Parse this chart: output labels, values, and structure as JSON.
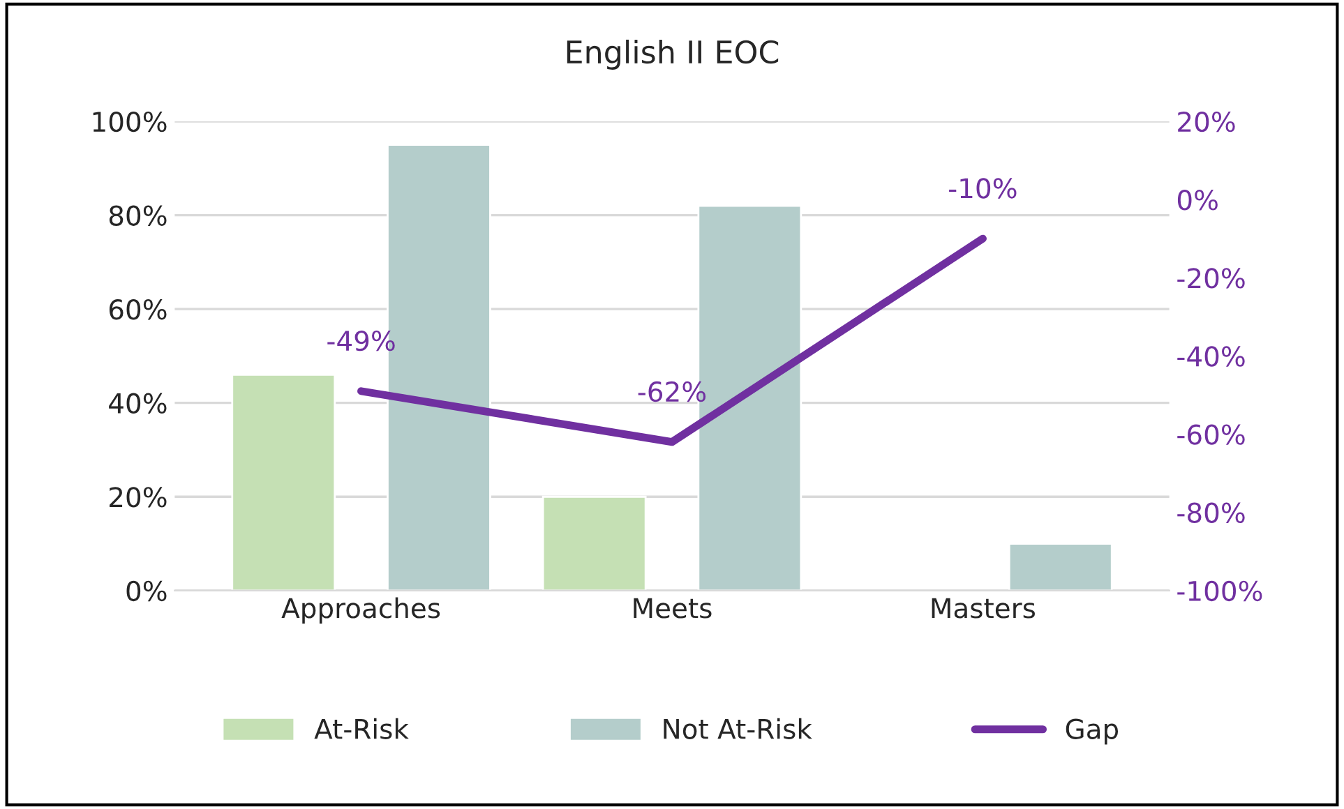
{
  "chart_data": {
    "type": "bar",
    "title": "English II EOC",
    "categories": [
      "Approaches",
      "Meets",
      "Masters"
    ],
    "series": [
      {
        "name": "At-Risk",
        "color": "#c5e0b4",
        "values": [
          46,
          20,
          null
        ]
      },
      {
        "name": "Not At-Risk",
        "color": "#b4cdcb",
        "values": [
          95,
          82,
          10
        ]
      },
      {
        "name": "Gap",
        "type": "line",
        "axis": "y2",
        "color": "#7030a0",
        "values": [
          -49,
          -62,
          -10
        ],
        "value_labels": [
          "-49%",
          "-62%",
          "-10%"
        ]
      }
    ],
    "ylim": [
      0,
      100
    ],
    "yticks": [
      {
        "value": 0,
        "label": "0%"
      },
      {
        "value": 20,
        "label": "20%"
      },
      {
        "value": 40,
        "label": "40%"
      },
      {
        "value": 60,
        "label": "60%"
      },
      {
        "value": 80,
        "label": "80%"
      },
      {
        "value": 100,
        "label": "100%"
      }
    ],
    "y2lim": [
      -100,
      20
    ],
    "y2ticks": [
      {
        "value": -100,
        "label": "-100%"
      },
      {
        "value": -80,
        "label": "-80%"
      },
      {
        "value": -60,
        "label": "-60%"
      },
      {
        "value": -40,
        "label": "-40%"
      },
      {
        "value": -20,
        "label": "-20%"
      },
      {
        "value": 0,
        "label": "0%"
      },
      {
        "value": 20,
        "label": "20%"
      }
    ],
    "grid": "y",
    "legend": "bottom",
    "marker": "none"
  }
}
